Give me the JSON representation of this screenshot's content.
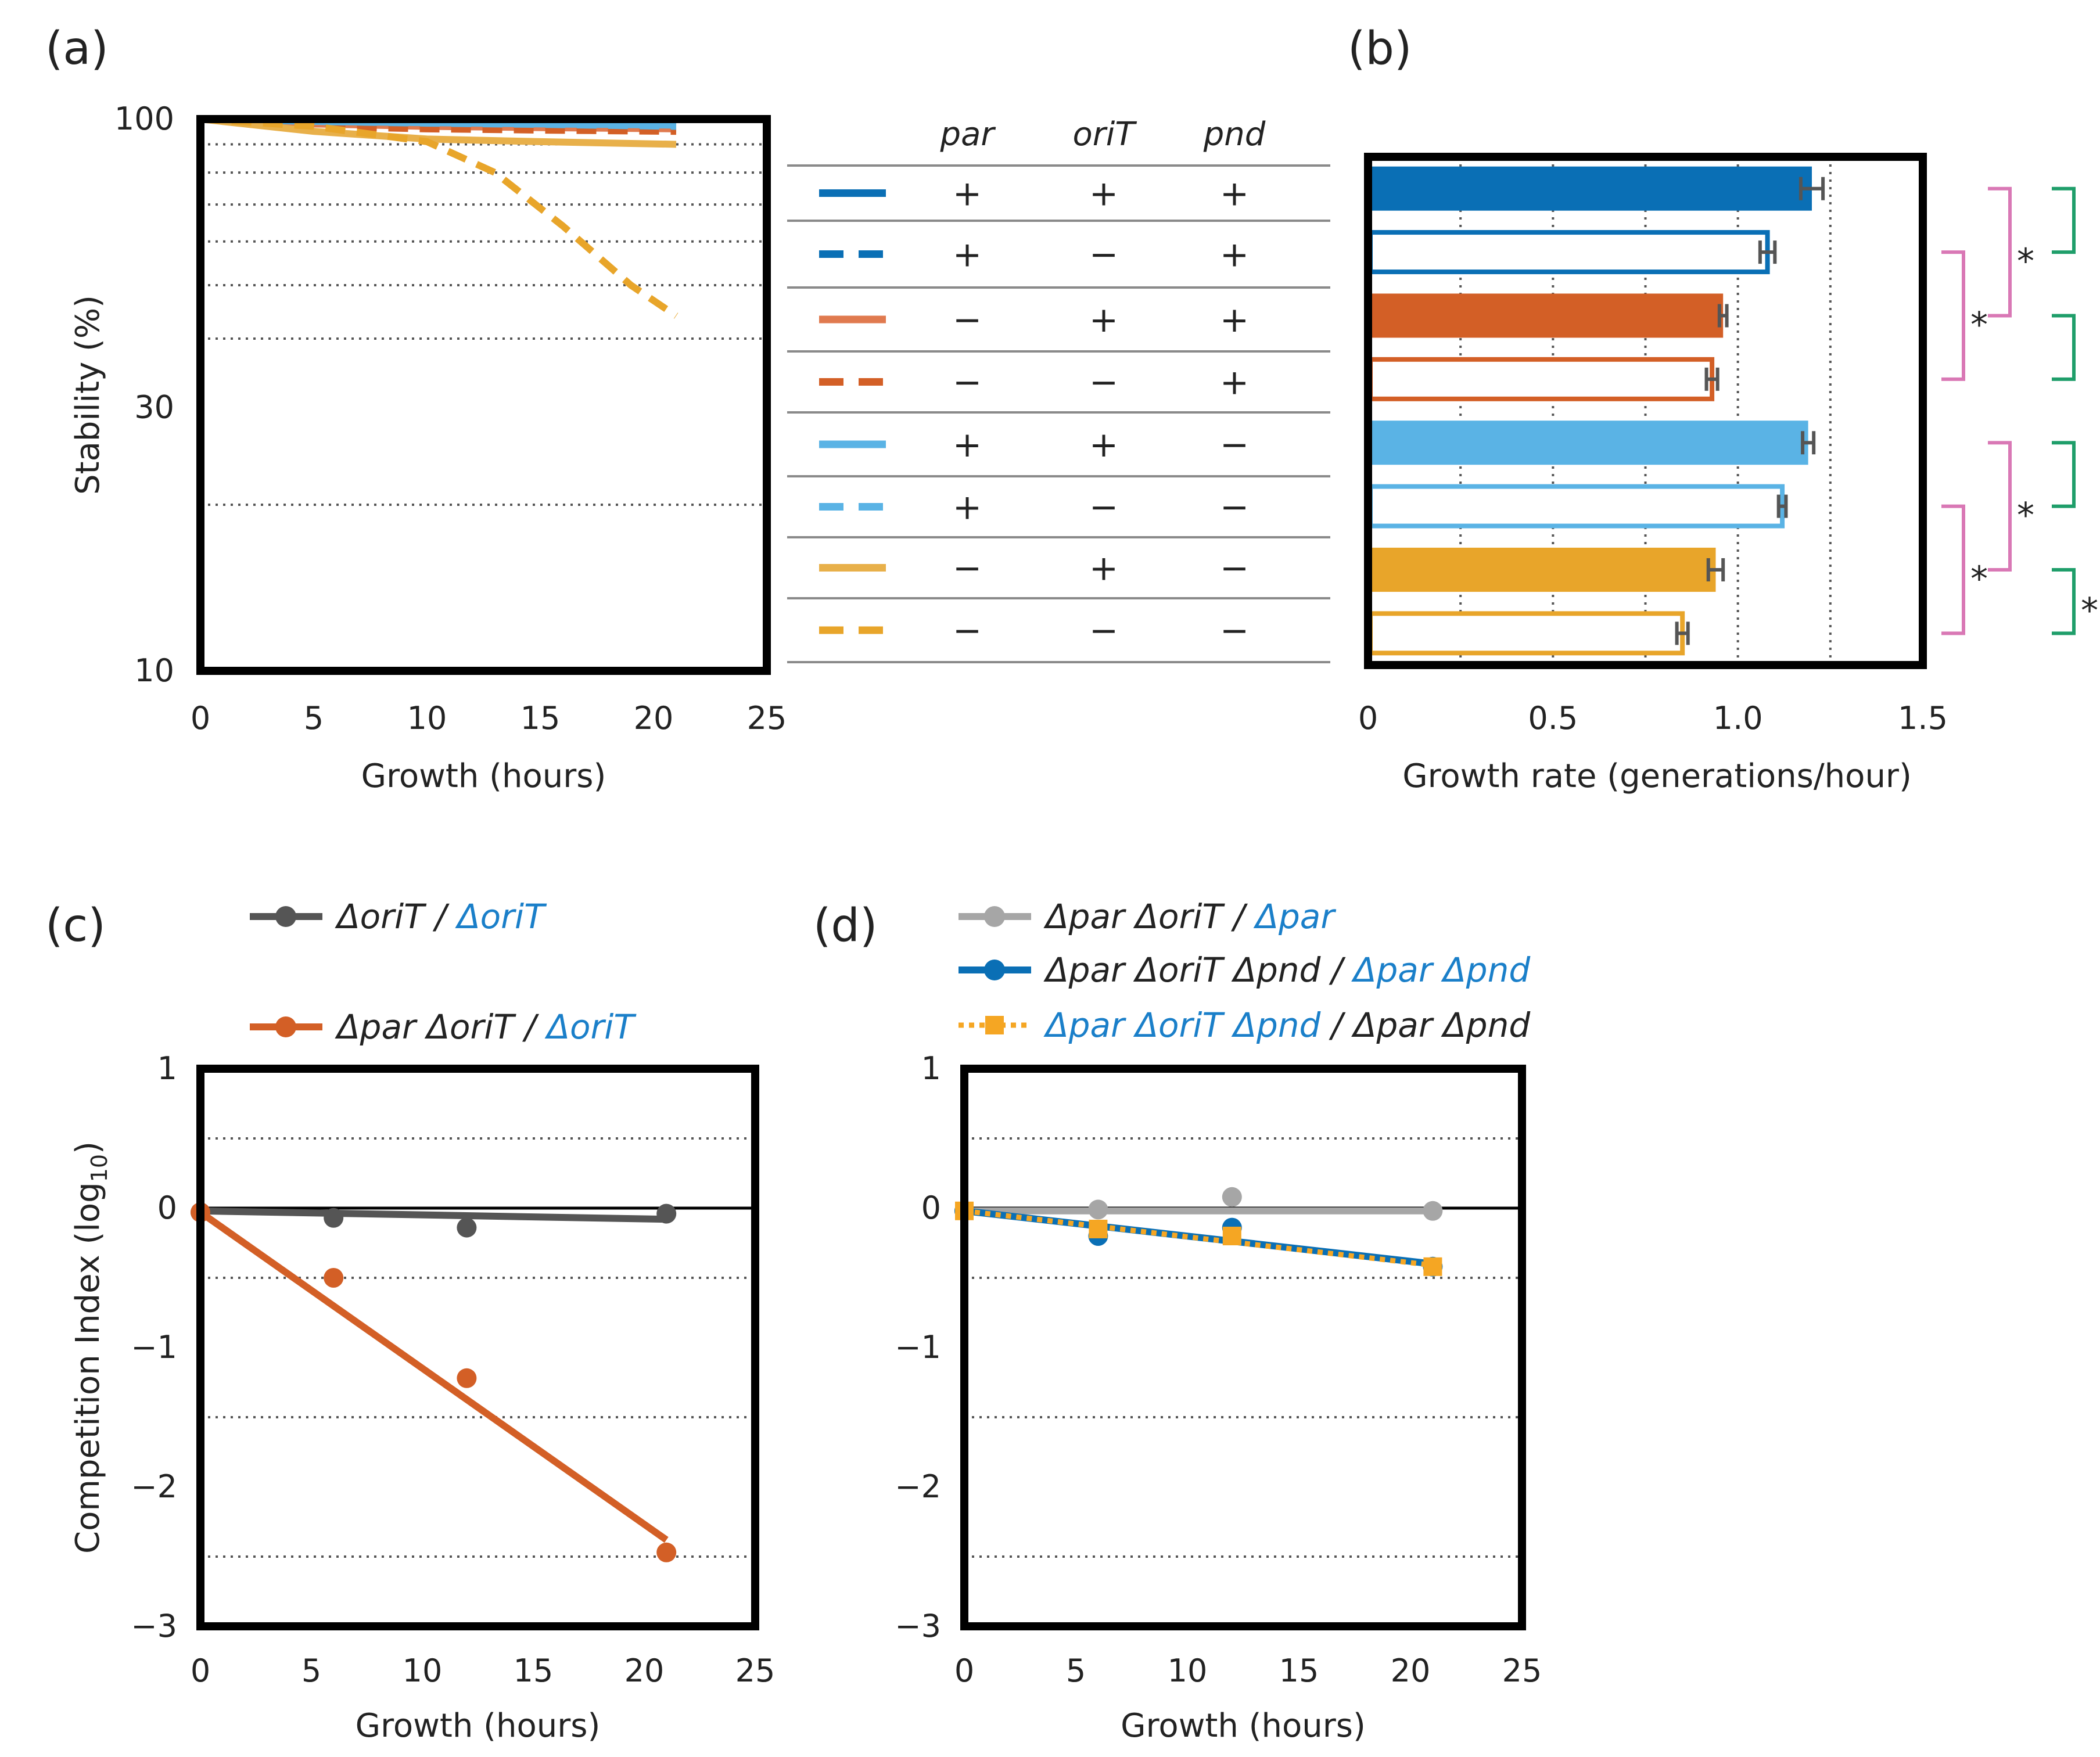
{
  "panel_labels": {
    "a": "(a)",
    "b": "(b)",
    "c": "(c)",
    "d": "(d)"
  },
  "colors": {
    "blue": "#0a6fb5",
    "orange": "#d35f26",
    "lightblue": "#5ab3e5",
    "gold": "#e8a52a",
    "gray_dark": "#555555",
    "gray_light": "#a6a6a6",
    "orange_bright": "#f5a623",
    "pink": "#d978b5",
    "green": "#1f9e6a",
    "text_blue": "#1a7fc9"
  },
  "table": {
    "headers": [
      "par",
      "oriT",
      "pnd"
    ],
    "rows": [
      {
        "color": "#0a6fb5",
        "dashed": false,
        "par": "+",
        "oriT": "+",
        "pnd": "+"
      },
      {
        "color": "#0a6fb5",
        "dashed": true,
        "par": "+",
        "oriT": "−",
        "pnd": "+"
      },
      {
        "color": "#e07a4f",
        "dashed": false,
        "par": "−",
        "oriT": "+",
        "pnd": "+"
      },
      {
        "color": "#d35f26",
        "dashed": true,
        "par": "−",
        "oriT": "−",
        "pnd": "+"
      },
      {
        "color": "#5ab3e5",
        "dashed": false,
        "par": "+",
        "oriT": "+",
        "pnd": "−"
      },
      {
        "color": "#5ab3e5",
        "dashed": true,
        "par": "+",
        "oriT": "−",
        "pnd": "−"
      },
      {
        "color": "#e8b04a",
        "dashed": false,
        "par": "−",
        "oriT": "+",
        "pnd": "−"
      },
      {
        "color": "#e8a52a",
        "dashed": true,
        "par": "−",
        "oriT": "−",
        "pnd": "−"
      }
    ]
  },
  "significance": {
    "star": "*"
  },
  "chart_data": [
    {
      "id": "a",
      "type": "line",
      "title": "",
      "xlabel": "Growth (hours)",
      "ylabel": "Stability (%)",
      "xlim": [
        0,
        25
      ],
      "ylim": [
        10,
        100
      ],
      "yscale": "log",
      "xticks": [
        "0",
        "5",
        "10",
        "15",
        "20",
        "25"
      ],
      "xtick_values": [
        0,
        5,
        10,
        15,
        20,
        25
      ],
      "yticks": [
        "10",
        "30",
        "100"
      ],
      "ytick_values": [
        10,
        30,
        100
      ],
      "grid_y": [
        20,
        40,
        50,
        60,
        70,
        80,
        90
      ],
      "series": [
        {
          "name": "par+ oriT+ pnd+",
          "color": "#0a6fb5",
          "dashed": false,
          "x": [
            0,
            5,
            10,
            15,
            21
          ],
          "y": [
            100,
            100,
            100,
            100,
            100
          ]
        },
        {
          "name": "par+ oriT− pnd+",
          "color": "#0a6fb5",
          "dashed": true,
          "x": [
            0,
            5,
            10,
            15,
            21
          ],
          "y": [
            100,
            99.5,
            99,
            98.5,
            98
          ]
        },
        {
          "name": "par− oriT+ pnd+",
          "color": "#e07a4f",
          "dashed": false,
          "x": [
            0,
            5,
            10,
            15,
            21
          ],
          "y": [
            100,
            98,
            97,
            96.5,
            96
          ]
        },
        {
          "name": "par− oriT− pnd+",
          "color": "#d35f26",
          "dashed": true,
          "x": [
            0,
            5,
            10,
            15,
            21
          ],
          "y": [
            100,
            97,
            96,
            95.5,
            95
          ]
        },
        {
          "name": "par+ oriT+ pnd−",
          "color": "#5ab3e5",
          "dashed": false,
          "x": [
            0,
            5,
            10,
            15,
            21
          ],
          "y": [
            100,
            99,
            98.5,
            98,
            97.5
          ]
        },
        {
          "name": "par+ oriT− pnd−",
          "color": "#5ab3e5",
          "dashed": true,
          "x": [
            0,
            5,
            10,
            15,
            21
          ],
          "y": [
            100,
            99,
            98.3,
            97.8,
            97
          ]
        },
        {
          "name": "par− oriT+ pnd−",
          "color": "#e8b04a",
          "dashed": false,
          "x": [
            0,
            5,
            10,
            15,
            21
          ],
          "y": [
            100,
            95,
            92,
            91,
            90
          ]
        },
        {
          "name": "par− oriT− pnd−",
          "color": "#e8a52a",
          "dashed": true,
          "x": [
            0,
            5,
            10,
            13,
            16,
            19,
            21
          ],
          "y": [
            100,
            97,
            91,
            80,
            64,
            50,
            44
          ]
        }
      ]
    },
    {
      "id": "b",
      "type": "bar",
      "orientation": "horizontal",
      "xlabel": "Growth rate (generations/hour)",
      "xlim": [
        0,
        1.5
      ],
      "xticks": [
        "0",
        "0.5",
        "1.0",
        "1.5"
      ],
      "xtick_values": [
        0,
        0.5,
        1.0,
        1.5
      ],
      "grid_x": [
        0.25,
        0.5,
        0.75,
        1.0,
        1.25
      ],
      "bars": [
        {
          "color": "#0a6fb5",
          "filled": true,
          "value": 1.2,
          "err": 0.03
        },
        {
          "color": "#0a6fb5",
          "filled": false,
          "value": 1.08,
          "err": 0.02
        },
        {
          "color": "#d35f26",
          "filled": true,
          "value": 0.96,
          "err": 0.01
        },
        {
          "color": "#d35f26",
          "filled": false,
          "value": 0.93,
          "err": 0.015
        },
        {
          "color": "#5ab3e5",
          "filled": true,
          "value": 1.19,
          "err": 0.015
        },
        {
          "color": "#5ab3e5",
          "filled": false,
          "value": 1.12,
          "err": 0.01
        },
        {
          "color": "#e8a52a",
          "filled": true,
          "value": 0.94,
          "err": 0.02
        },
        {
          "color": "#e8a52a",
          "filled": false,
          "value": 0.85,
          "err": 0.015
        }
      ],
      "comparisons": [
        {
          "bars": [
            0,
            1
          ],
          "color": "green",
          "significant": false
        },
        {
          "bars": [
            2,
            3
          ],
          "color": "green",
          "significant": false
        },
        {
          "bars": [
            4,
            5
          ],
          "color": "green",
          "significant": false
        },
        {
          "bars": [
            6,
            7
          ],
          "color": "green",
          "significant": true
        },
        {
          "bars": [
            0,
            2
          ],
          "color": "pink",
          "significant": true
        },
        {
          "bars": [
            1,
            3
          ],
          "color": "pink",
          "significant": true
        },
        {
          "bars": [
            4,
            6
          ],
          "color": "pink",
          "significant": true
        },
        {
          "bars": [
            5,
            7
          ],
          "color": "pink",
          "significant": true
        }
      ]
    },
    {
      "id": "c",
      "type": "scatter",
      "xlabel": "Growth (hours)",
      "ylabel": "Competition Index (log",
      "ylabel_sub": "10",
      "ylabel_close": ")",
      "xlim": [
        0,
        25
      ],
      "ylim": [
        -3,
        1
      ],
      "xticks": [
        "0",
        "5",
        "10",
        "15",
        "20",
        "25"
      ],
      "xtick_values": [
        0,
        5,
        10,
        15,
        20,
        25
      ],
      "yticks": [
        "1",
        "0",
        "−1",
        "−2",
        "−3"
      ],
      "ytick_values": [
        1,
        0,
        -1,
        -2,
        -3
      ],
      "grid_y": [
        0.5,
        -0.5,
        -1.5,
        -2.5
      ],
      "series": [
        {
          "name_parts": [
            [
              "ΔoriT / ",
              "#222222"
            ],
            [
              "ΔoriT",
              "#1a7fc9"
            ]
          ],
          "color": "#555555",
          "marker": "circle",
          "dotted": false,
          "x": [
            0,
            6,
            12,
            21
          ],
          "y": [
            -0.03,
            -0.07,
            -0.14,
            -0.04
          ],
          "fit": [
            [
              0,
              -0.02
            ],
            [
              21,
              -0.08
            ]
          ]
        },
        {
          "name_parts": [
            [
              "Δpar ΔoriT / ",
              "#222222"
            ],
            [
              "ΔoriT",
              "#1a7fc9"
            ]
          ],
          "color": "#d35f26",
          "marker": "circle",
          "dotted": false,
          "x": [
            0,
            6,
            12,
            21
          ],
          "y": [
            -0.03,
            -0.5,
            -1.22,
            -2.47
          ],
          "fit": [
            [
              0,
              -0.03
            ],
            [
              21,
              -2.38
            ]
          ]
        }
      ]
    },
    {
      "id": "d",
      "type": "scatter",
      "xlabel": "Growth (hours)",
      "xlim": [
        0,
        25
      ],
      "ylim": [
        -3,
        1
      ],
      "xticks": [
        "0",
        "5",
        "10",
        "15",
        "20",
        "25"
      ],
      "xtick_values": [
        0,
        5,
        10,
        15,
        20,
        25
      ],
      "yticks": [
        "1",
        "0",
        "−1",
        "−2",
        "−3"
      ],
      "ytick_values": [
        1,
        0,
        -1,
        -2,
        -3
      ],
      "grid_y": [
        0.5,
        -0.5,
        -1.5,
        -2.5
      ],
      "series": [
        {
          "name_parts": [
            [
              "Δpar ΔoriT / ",
              "#222222"
            ],
            [
              "Δpar",
              "#1a7fc9"
            ]
          ],
          "color": "#a6a6a6",
          "marker": "circle",
          "dotted": false,
          "x": [
            0,
            6,
            12,
            21
          ],
          "y": [
            -0.02,
            -0.01,
            0.08,
            -0.02
          ],
          "fit": [
            [
              0,
              -0.02
            ],
            [
              21,
              -0.02
            ]
          ]
        },
        {
          "name_parts": [
            [
              "Δpar ΔoriT Δpnd / ",
              "#222222"
            ],
            [
              "Δpar Δpnd",
              "#1a7fc9"
            ]
          ],
          "color": "#0a6fb5",
          "marker": "circle",
          "dotted": false,
          "x": [
            0,
            6,
            12,
            21
          ],
          "y": [
            -0.02,
            -0.2,
            -0.14,
            -0.42
          ],
          "fit": [
            [
              0,
              -0.02
            ],
            [
              21,
              -0.4
            ]
          ]
        },
        {
          "name_parts": [
            [
              "Δpar ΔoriT Δpnd",
              "#1a7fc9"
            ],
            [
              " / Δpar Δpnd",
              "#222222"
            ]
          ],
          "color": "#f5a623",
          "marker": "square",
          "dotted": true,
          "x": [
            0,
            6,
            12,
            21
          ],
          "y": [
            -0.02,
            -0.15,
            -0.2,
            -0.42
          ],
          "fit": [
            [
              0,
              -0.02
            ],
            [
              21,
              -0.41
            ]
          ]
        }
      ]
    }
  ]
}
